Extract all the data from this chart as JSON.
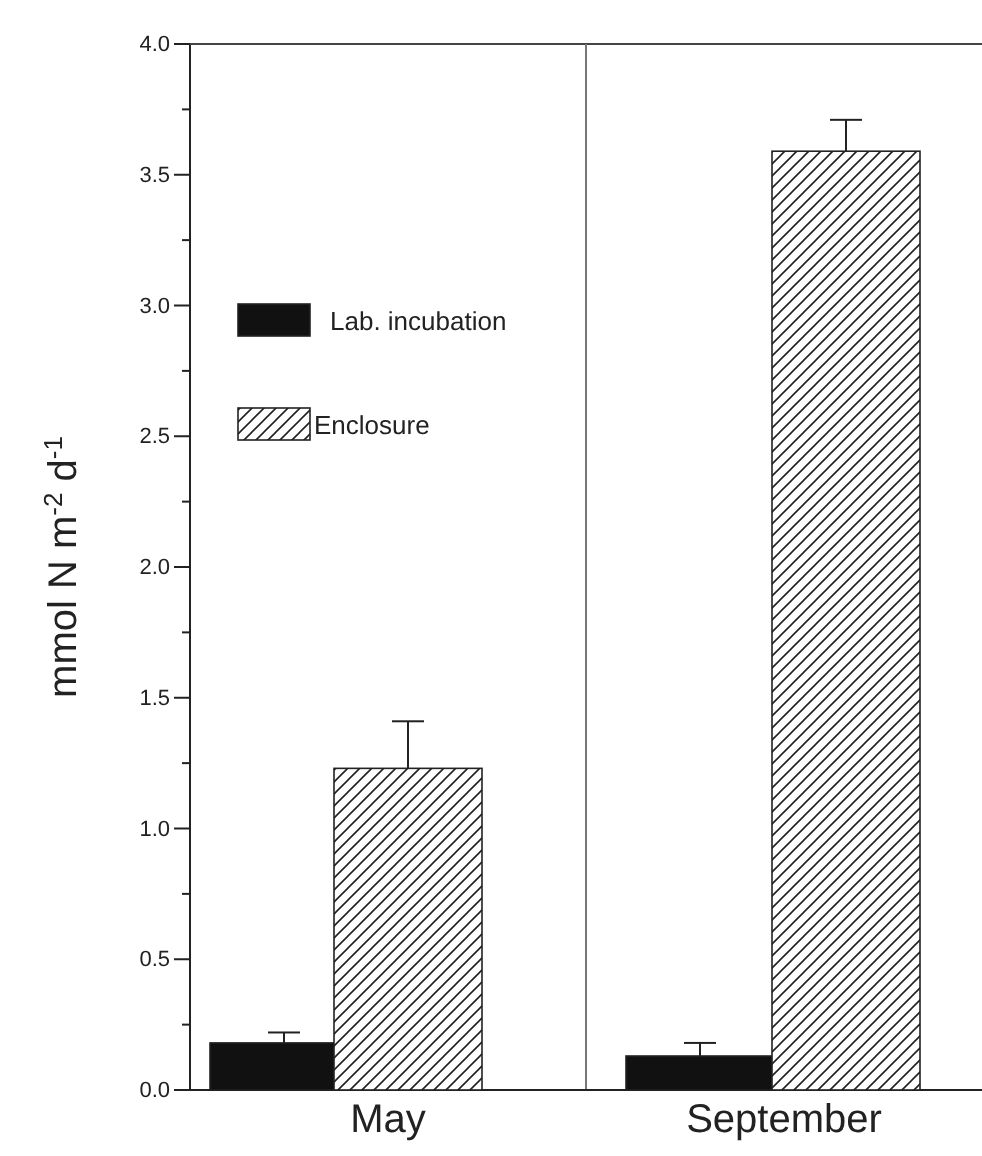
{
  "chart_data": {
    "type": "bar",
    "categories": [
      "May",
      "September"
    ],
    "ylabel": "mmol N m$^{-2}$ d$^{-1}$",
    "series": [
      {
        "name": "Lab. incubation",
        "color": "#111111",
        "values": [
          0.18,
          0.13
        ],
        "errors": [
          0.04,
          0.05
        ]
      },
      {
        "name": "Enclosure",
        "color": "#222222",
        "values": [
          1.23,
          3.59
        ],
        "errors": [
          0.18,
          0.12
        ]
      }
    ],
    "ylim": [
      0,
      4
    ],
    "yticks": [
      {
        "value": 0,
        "label": "0.0"
      },
      {
        "value": 0.25,
        "label": null
      },
      {
        "value": 0.5,
        "label": "0.5"
      },
      {
        "value": 0.75,
        "label": null
      },
      {
        "value": 1,
        "label": "1.0"
      },
      {
        "value": 1.25,
        "label": null
      },
      {
        "value": 1.5,
        "label": "1.5"
      },
      {
        "value": 1.75,
        "label": null
      },
      {
        "value": 2,
        "label": "2.0"
      },
      {
        "value": 2.25,
        "label": null
      },
      {
        "value": 2.5,
        "label": "2.5"
      },
      {
        "value": 2.75,
        "label": null
      },
      {
        "value": 3,
        "label": "3.0"
      },
      {
        "value": 3.25,
        "label": null
      },
      {
        "value": 3.5,
        "label": "3.5"
      },
      {
        "value": 3.75,
        "label": null
      },
      {
        "value": 4,
        "label": "4.0"
      }
    ],
    "legend": "top left",
    "grid": false
  }
}
